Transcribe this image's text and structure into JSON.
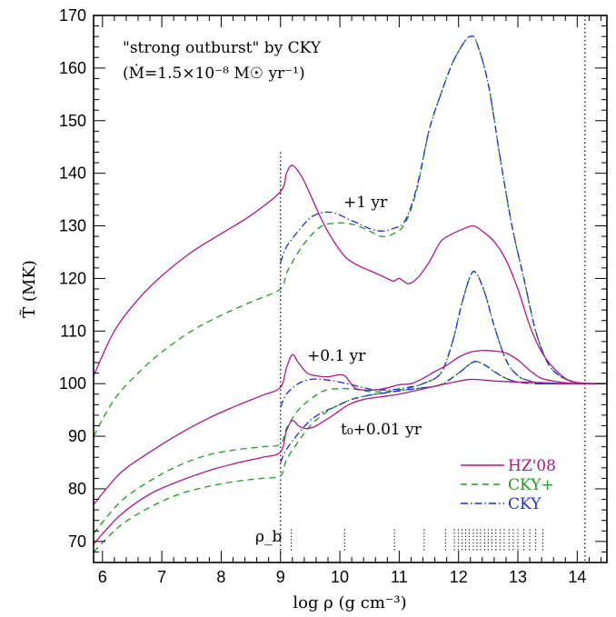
{
  "chart_data": {
    "type": "line",
    "xlabel": "log ρ (g cm⁻³)",
    "ylabel": "T̃ (MK)",
    "xlim": [
      5.85,
      14.5
    ],
    "ylim": [
      66,
      170
    ],
    "xticks": [
      6,
      7,
      8,
      9,
      10,
      11,
      12,
      13,
      14
    ],
    "yticks": [
      70,
      80,
      90,
      100,
      110,
      120,
      130,
      140,
      150,
      160,
      170
    ],
    "legend_position": "bottom-right",
    "colors": {
      "HZ08": "#b0178a",
      "CKYplus": "#1f9a1f",
      "CKY": "#1c2fd6"
    },
    "annotations": {
      "title_line1": "\"strong outburst\" by CKY",
      "title_line2": "(Ṁ=1.5×10⁻⁸ M☉ yr⁻¹)",
      "label_1yr": "+1 yr",
      "label_01yr": "+0.1 yr",
      "label_001yr": "t₀+0.01 yr",
      "rho_b": "ρ_b"
    },
    "vertical_lines": [
      9.0,
      14.13
    ],
    "rho_b_markers": [
      9.18,
      10.08,
      10.92,
      11.42,
      11.78,
      11.93,
      12.0,
      12.06,
      12.12,
      12.18,
      12.25,
      12.31,
      12.37,
      12.44,
      12.5,
      12.56,
      12.63,
      12.7,
      12.77,
      12.85,
      12.92,
      13.0,
      13.1,
      13.2,
      13.3,
      13.42
    ],
    "series": [
      {
        "name": "HZ'08",
        "style": "solid",
        "color": "#b0178a",
        "epoch": "+1 yr",
        "x": [
          5.85,
          6.2,
          6.6,
          7.0,
          7.5,
          8.0,
          8.5,
          9.0,
          9.1,
          9.2,
          9.35,
          9.5,
          9.7,
          9.9,
          10.1,
          10.3,
          10.5,
          10.7,
          10.9,
          11.0,
          11.15,
          11.3,
          11.5,
          11.7,
          11.9,
          12.1,
          12.25,
          12.4,
          12.6,
          12.8,
          13.0,
          13.2,
          13.4,
          13.6,
          13.8,
          14.0,
          14.5
        ],
        "y": [
          101.5,
          110,
          116,
          120.5,
          125,
          128.5,
          132,
          136.5,
          140,
          141.5,
          139.5,
          136,
          131,
          127,
          124,
          122.5,
          121.5,
          120.5,
          119.5,
          120,
          119,
          120,
          123,
          127,
          128.5,
          129.5,
          130,
          129,
          127,
          123.5,
          118,
          111,
          106,
          103,
          101,
          100.2,
          100
        ]
      },
      {
        "name": "CKY+",
        "style": "dashed",
        "color": "#1f9a1f",
        "epoch": "+1 yr",
        "x": [
          5.85,
          6.2,
          6.6,
          7.0,
          7.5,
          8.0,
          8.5,
          9.0,
          9.1,
          9.3,
          9.5,
          9.7,
          9.9,
          10.1,
          10.3,
          10.5,
          10.7,
          10.9,
          11.1,
          11.3,
          11.5,
          11.7,
          11.9,
          12.1,
          12.2,
          12.3,
          12.5,
          12.7,
          12.9,
          13.1,
          13.3,
          13.5,
          13.7,
          13.9,
          14.1,
          14.5
        ],
        "y": [
          90,
          97,
          102,
          106,
          110,
          113,
          115.5,
          118,
          121,
          125,
          128,
          130,
          130.5,
          130.5,
          130,
          129,
          128,
          128.5,
          130.5,
          137,
          148,
          155,
          161,
          165,
          166,
          165,
          157,
          143,
          130,
          120,
          110,
          104,
          101.5,
          100.5,
          100,
          100
        ]
      },
      {
        "name": "CKY",
        "style": "dashdot",
        "color": "#1c2fd6",
        "epoch": "+1 yr",
        "x": [
          9.0,
          9.1,
          9.3,
          9.5,
          9.7,
          9.9,
          10.1,
          10.3,
          10.5,
          10.7,
          10.9,
          11.1,
          11.3,
          11.5,
          11.7,
          11.9,
          12.1,
          12.2,
          12.3,
          12.5,
          12.7,
          12.9,
          13.1,
          13.3,
          13.5,
          13.7,
          13.9,
          14.1,
          14.5
        ],
        "y": [
          123,
          126,
          129,
          131.5,
          132.5,
          132.5,
          131.5,
          130.5,
          129.5,
          129,
          129.5,
          131,
          137.5,
          148,
          155,
          161,
          165,
          166,
          165,
          157,
          143,
          130,
          120,
          110,
          104,
          101.5,
          100.5,
          100,
          100
        ]
      },
      {
        "name": "HZ'08",
        "style": "solid",
        "color": "#b0178a",
        "epoch": "+0.1 yr",
        "x": [
          5.85,
          6.3,
          6.8,
          7.3,
          7.8,
          8.3,
          8.7,
          9.0,
          9.1,
          9.2,
          9.3,
          9.45,
          9.6,
          9.8,
          10.0,
          10.1,
          10.25,
          10.4,
          10.6,
          10.8,
          11.0,
          11.2,
          11.4,
          11.6,
          11.8,
          12.0,
          12.2,
          12.4,
          12.6,
          12.8,
          13.0,
          13.2,
          13.4,
          13.7,
          14.0,
          14.5
        ],
        "y": [
          77,
          83,
          87,
          90.5,
          93.5,
          96,
          97.8,
          99.3,
          103,
          105.5,
          104,
          102,
          101.5,
          101.3,
          101.7,
          101.3,
          99.2,
          98.8,
          98.8,
          99.2,
          99.8,
          100,
          101,
          102.3,
          103.5,
          105,
          106,
          106.3,
          106.2,
          105.8,
          104.5,
          102.5,
          101,
          100.3,
          100,
          100
        ]
      },
      {
        "name": "CKY+",
        "style": "dashed",
        "color": "#1f9a1f",
        "epoch": "+0.1 yr",
        "x": [
          5.85,
          6.3,
          6.8,
          7.3,
          7.8,
          8.3,
          8.7,
          9.0,
          9.1,
          9.3,
          9.5,
          9.7,
          9.9,
          10.2,
          10.5,
          10.8,
          11.1,
          11.4,
          11.7,
          11.9,
          12.05,
          12.2,
          12.3,
          12.45,
          12.6,
          12.8,
          13.0,
          13.2,
          13.4,
          13.6,
          13.8,
          14.0,
          14.5
        ],
        "y": [
          71.5,
          77.5,
          81.5,
          84.5,
          86.5,
          87.5,
          88,
          88.5,
          91.5,
          95,
          97,
          98.5,
          99,
          99,
          98.5,
          98.5,
          99,
          100,
          102,
          108,
          115,
          120.5,
          121,
          117,
          111,
          104.5,
          101.5,
          100.5,
          100,
          100,
          100,
          100,
          100
        ]
      },
      {
        "name": "CKY",
        "style": "dashdot",
        "color": "#1c2fd6",
        "epoch": "+0.1 yr",
        "x": [
          9.0,
          9.1,
          9.3,
          9.5,
          9.7,
          9.9,
          10.2,
          10.5,
          10.8,
          11.1,
          11.4,
          11.7,
          11.9,
          12.05,
          12.2,
          12.3,
          12.45,
          12.6,
          12.8,
          13.0,
          13.2,
          13.4,
          13.6,
          13.8,
          14.0,
          14.5
        ],
        "y": [
          95.5,
          98,
          100,
          100.8,
          100.8,
          100.5,
          99.8,
          99,
          98.8,
          99.2,
          100,
          102,
          108,
          115,
          120.5,
          121,
          117,
          111,
          104.5,
          101.5,
          100.5,
          100,
          100,
          100,
          100,
          100
        ]
      },
      {
        "name": "HZ'08",
        "style": "solid",
        "color": "#b0178a",
        "epoch": "t0+0.01 yr",
        "x": [
          5.85,
          6.3,
          6.8,
          7.3,
          7.8,
          8.3,
          8.7,
          9.0,
          9.1,
          9.2,
          9.3,
          9.4,
          9.55,
          9.75,
          9.95,
          10.15,
          10.4,
          10.7,
          11.0,
          11.4,
          11.8,
          12.2,
          12.6,
          13.0,
          13.4,
          13.8,
          14.2,
          14.5
        ],
        "y": [
          69.5,
          75,
          79,
          81.5,
          83.5,
          85,
          86,
          87,
          91,
          93,
          92,
          91.5,
          91.7,
          93,
          94.5,
          96,
          97,
          97.5,
          98,
          99,
          100,
          100.8,
          100.5,
          100.3,
          100.2,
          100,
          100,
          100
        ]
      },
      {
        "name": "CKY+",
        "style": "dashed",
        "color": "#1f9a1f",
        "epoch": "t0+0.01 yr",
        "x": [
          5.85,
          6.3,
          6.8,
          7.3,
          7.8,
          8.3,
          8.7,
          9.0,
          9.1,
          9.3,
          9.5,
          9.7,
          9.9,
          10.2,
          10.5,
          10.8,
          11.1,
          11.4,
          11.7,
          12.0,
          12.2,
          12.3,
          12.45,
          12.6,
          12.8,
          13.0,
          13.3,
          13.6,
          14.0,
          14.5
        ],
        "y": [
          68,
          73,
          76.5,
          79,
          80.5,
          81.5,
          82,
          82.5,
          85.5,
          89,
          92,
          94,
          95.5,
          97,
          97.8,
          98.3,
          98.8,
          99.2,
          99.8,
          102,
          103.8,
          104.2,
          103.5,
          102.3,
          101,
          100.3,
          100,
          100,
          100,
          100
        ]
      },
      {
        "name": "CKY",
        "style": "dashdot",
        "color": "#1c2fd6",
        "epoch": "t0+0.01 yr",
        "x": [
          9.0,
          9.1,
          9.3,
          9.5,
          9.7,
          9.9,
          10.2,
          10.5,
          10.8,
          11.1,
          11.4,
          11.7,
          12.0,
          12.2,
          12.3,
          12.45,
          12.6,
          12.8,
          13.0,
          13.3,
          13.6,
          14.0,
          14.5
        ],
        "y": [
          85,
          87.5,
          90.5,
          93,
          94.5,
          95.5,
          97,
          97.8,
          98.3,
          98.8,
          99.2,
          99.8,
          102,
          103.8,
          104.2,
          103.5,
          102.3,
          101,
          100.3,
          100,
          100,
          100,
          100
        ]
      }
    ],
    "legend": [
      {
        "name": "HZ'08",
        "style": "solid",
        "color": "#b0178a"
      },
      {
        "name": "CKY+",
        "style": "dashed",
        "color": "#1f9a1f"
      },
      {
        "name": "CKY",
        "style": "dashdot",
        "color": "#1c2fd6"
      }
    ]
  }
}
